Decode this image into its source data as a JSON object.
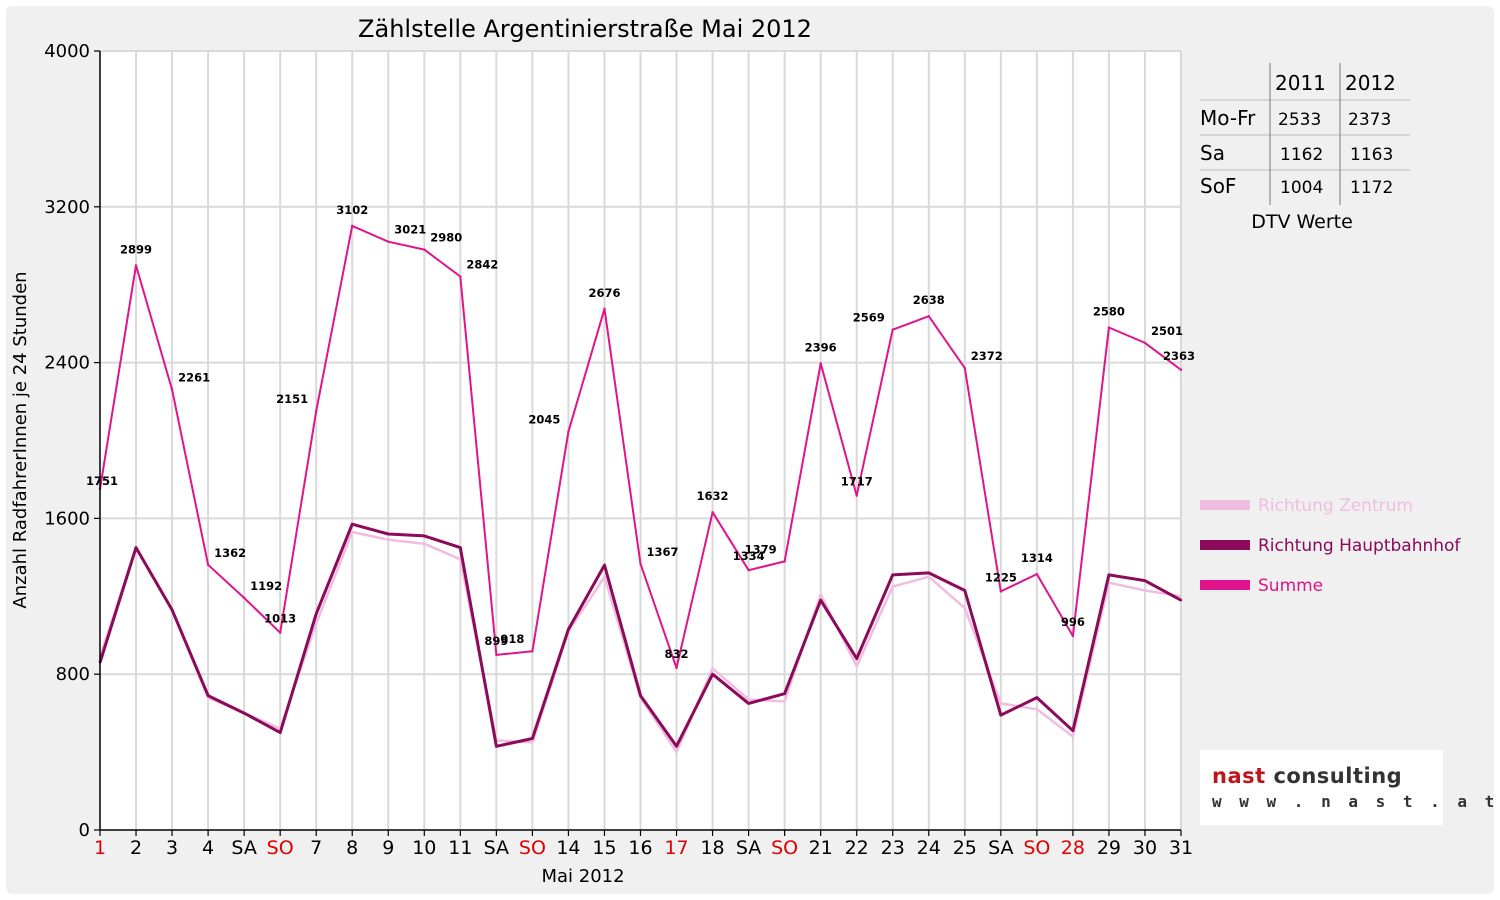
{
  "chart_data": {
    "type": "line",
    "title": "Zählstelle Argentinierstraße Mai 2012",
    "xlabel": "Mai 2012",
    "ylabel": "Anzahl RadfahrerInnen je 24 Stunden",
    "ylim": [
      0,
      4000
    ],
    "yticks": [
      "0",
      "800",
      "1600",
      "2400",
      "3200",
      "4000"
    ],
    "grid": true,
    "legend_position": "right",
    "categories": [
      "1",
      "2",
      "3",
      "4",
      "SA",
      "SO",
      "7",
      "8",
      "9",
      "10",
      "11",
      "SA",
      "SO",
      "14",
      "15",
      "16",
      "17",
      "18",
      "SA",
      "SO",
      "21",
      "22",
      "23",
      "24",
      "25",
      "SA",
      "SO",
      "28",
      "29",
      "30",
      "31"
    ],
    "category_colors": [
      "#e00000",
      "#000000",
      "#000000",
      "#000000",
      "#000000",
      "#e00000",
      "#000000",
      "#000000",
      "#000000",
      "#000000",
      "#000000",
      "#000000",
      "#e00000",
      "#000000",
      "#000000",
      "#000000",
      "#e00000",
      "#000000",
      "#000000",
      "#e00000",
      "#000000",
      "#000000",
      "#000000",
      "#000000",
      "#000000",
      "#000000",
      "#e00000",
      "#e00000",
      "#000000",
      "#000000",
      "#000000"
    ],
    "series": [
      {
        "name": "Richtung Zentrum",
        "color": "#f0bde0",
        "values": [
          890,
          1450,
          1130,
          680,
          600,
          520,
          1060,
          1530,
          1490,
          1470,
          1390,
          460,
          450,
          1020,
          1300,
          680,
          400,
          830,
          670,
          660,
          1210,
          840,
          1250,
          1300,
          1140,
          650,
          620,
          480,
          1270,
          1230,
          1200
        ]
      },
      {
        "name": "Richtung Hauptbahnhof",
        "color": "#8b0a5a",
        "values": [
          860,
          1450,
          1130,
          690,
          600,
          500,
          1110,
          1570,
          1520,
          1510,
          1450,
          430,
          470,
          1030,
          1360,
          690,
          430,
          800,
          650,
          700,
          1180,
          880,
          1310,
          1320,
          1230,
          590,
          680,
          510,
          1310,
          1280,
          1180
        ]
      },
      {
        "name": "Summe",
        "color": "#e0148c",
        "values": [
          1751,
          2899,
          2261,
          1362,
          1192,
          1013,
          2151,
          3102,
          3021,
          2980,
          2842,
          899,
          918,
          2045,
          2676,
          1367,
          832,
          1632,
          1334,
          1379,
          2396,
          1717,
          2569,
          2638,
          2372,
          1225,
          1314,
          996,
          2580,
          2501,
          2363
        ]
      }
    ],
    "data_labels": [
      "1751",
      "2899",
      "2261",
      "1362",
      "1192",
      "1013",
      "2151",
      "3102",
      "3021",
      "2980",
      "2842",
      "899",
      "918",
      "2045",
      "2676",
      "1367",
      "832",
      "1632",
      "1334",
      "1379",
      "2396",
      "1717",
      "2569",
      "2638",
      "2372",
      "1225",
      "1314",
      "996",
      "2580",
      "2501",
      "2363"
    ]
  },
  "dtv_table": {
    "headers": [
      "",
      "2011",
      "2012"
    ],
    "rows": [
      {
        "label": "Mo-Fr",
        "v2011": "2533",
        "v2012": "2373"
      },
      {
        "label": "Sa",
        "v2011": "1162",
        "v2012": "1163"
      },
      {
        "label": "SoF",
        "v2011": "1004",
        "v2012": "1172"
      }
    ],
    "caption": "DTV Werte"
  },
  "logo": {
    "nast": "nast",
    "consulting": "consulting",
    "web": "w w w . n a s t . a t"
  }
}
